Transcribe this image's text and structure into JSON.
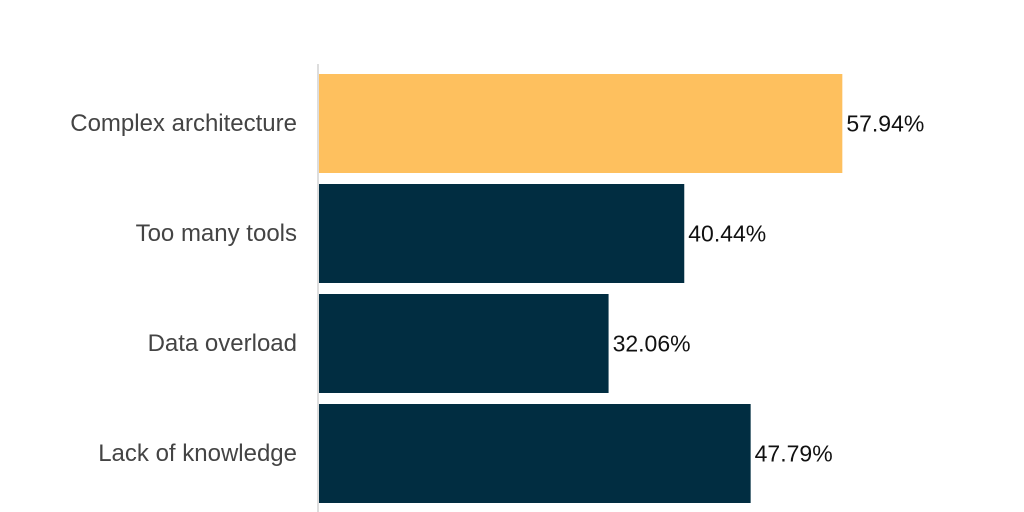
{
  "chart_data": {
    "type": "bar",
    "orientation": "horizontal",
    "categories": [
      "Complex architecture",
      "Too many tools",
      "Data overload",
      "Lack of knowledge"
    ],
    "values": [
      57.94,
      40.44,
      32.06,
      47.79
    ],
    "value_labels": [
      "57.94%",
      "40.44%",
      "32.06%",
      "47.79%"
    ],
    "unit": "%",
    "xlim": [
      0,
      62
    ],
    "grid": false,
    "legend": "none",
    "bar_colors": [
      "#FEC05E",
      "#012D41",
      "#012D41",
      "#012D41"
    ],
    "axis_color": "#DDDDDD"
  }
}
